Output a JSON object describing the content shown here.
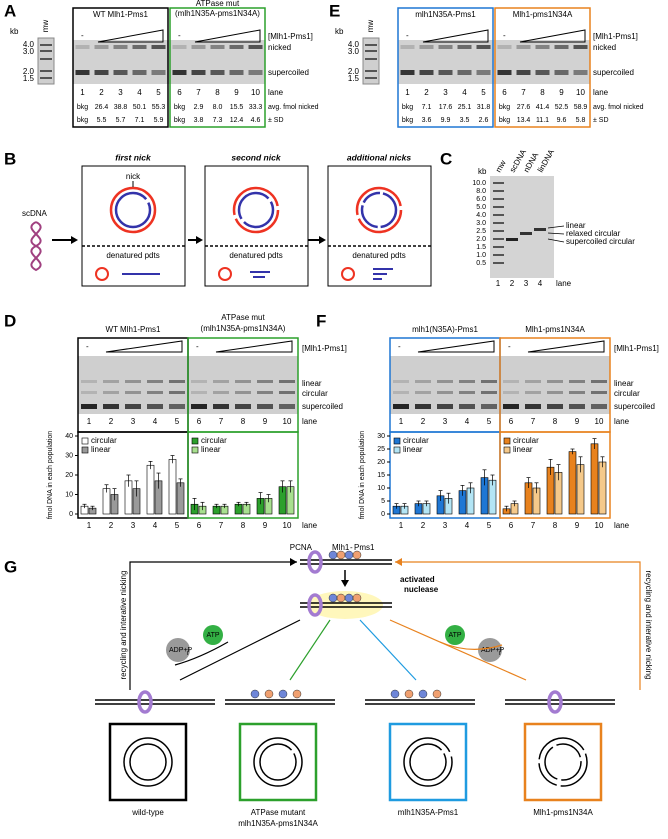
{
  "panel_a": {
    "letter": "A",
    "kb_label": "kb",
    "kb_marks": [
      "4.0",
      "3.0",
      "2.0",
      "1.5"
    ],
    "mw": "mw",
    "groups": [
      {
        "title": "WT Mlh1-Pms1",
        "color": "#000000"
      },
      {
        "title": "ATPase mut",
        "subtitle": "(mlh1N35A-pms1N34A)",
        "color": "#2ca02c"
      }
    ],
    "minus": "-",
    "conc_label": "[Mlh1-Pms1]",
    "band_labels": [
      "nicked",
      "supercoiled"
    ],
    "lane_label": "lane",
    "lanes": [
      "1",
      "2",
      "3",
      "4",
      "5",
      "6",
      "7",
      "8",
      "9",
      "10"
    ],
    "avg_label": "avg. fmol nicked",
    "sd_label": "± SD",
    "avg": [
      "bkg",
      "26.4",
      "38.8",
      "50.1",
      "55.3",
      "bkg",
      "2.9",
      "8.0",
      "15.5",
      "33.3"
    ],
    "sd": [
      "bkg",
      "5.5",
      "5.7",
      "7.1",
      "5.9",
      "bkg",
      "3.8",
      "7.3",
      "12.4",
      "4.6"
    ]
  },
  "panel_e": {
    "letter": "E",
    "kb_label": "kb",
    "kb_marks": [
      "4.0",
      "3.0",
      "2.0",
      "1.5"
    ],
    "mw": "mw",
    "groups": [
      {
        "title": "mlh1N35A-Pms1",
        "color": "#1f77d4"
      },
      {
        "title": "Mlh1-pms1N34A",
        "color": "#e8821e"
      }
    ],
    "minus": "-",
    "conc_label": "[Mlh1-Pms1]",
    "band_labels": [
      "nicked",
      "supercoiled"
    ],
    "lane_label": "lane",
    "lanes": [
      "1",
      "2",
      "3",
      "4",
      "5",
      "6",
      "7",
      "8",
      "9",
      "10"
    ],
    "avg_label": "avg. fmol nicked",
    "sd_label": "± SD",
    "avg": [
      "bkg",
      "7.1",
      "17.6",
      "25.1",
      "31.8",
      "bkg",
      "27.6",
      "41.4",
      "52.5",
      "58.9"
    ],
    "sd": [
      "bkg",
      "3.6",
      "9.9",
      "3.5",
      "2.6",
      "bkg",
      "13.4",
      "11.1",
      "9.6",
      "5.8"
    ]
  },
  "panel_b": {
    "letter": "B",
    "scdna": "scDNA",
    "steps": [
      {
        "title": "first nick"
      },
      {
        "title": "second nick"
      },
      {
        "title": "additional nicks"
      }
    ],
    "nick": "nick",
    "denatured": "denatured pdts"
  },
  "panel_c": {
    "letter": "C",
    "kb_label": "kb",
    "ladder": [
      "10.0",
      "8.0",
      "6.0",
      "5.0",
      "4.0",
      "3.0",
      "2.5",
      "2.0",
      "1.5",
      "1.0",
      "0.5"
    ],
    "lane_headers": [
      "mw",
      "scDNA",
      "nDNA",
      "linDNA"
    ],
    "band_labels": [
      "linear",
      "relaxed circular",
      "supercoiled circular"
    ],
    "lanes": [
      "1",
      "2",
      "3",
      "4"
    ],
    "lane_label": "lane"
  },
  "chart_data": [
    {
      "type": "bar",
      "label": "D",
      "groups": [
        {
          "title": "WT Mlh1-Pms1",
          "color": "#000000"
        },
        {
          "title": "ATPase mut",
          "subtitle": "(mlh1N35A-pms1N34A)",
          "color": "#2ca02c"
        }
      ],
      "minus": "-",
      "conc_label": "[Mlh1-Pms1]",
      "band_labels": [
        "linear",
        "circular",
        "supercoiled"
      ],
      "categories": [
        "1",
        "2",
        "3",
        "4",
        "5",
        "6",
        "7",
        "8",
        "9",
        "10"
      ],
      "x_label": "lane",
      "y_label": "fmol DNA in each population",
      "ylim": [
        0,
        40
      ],
      "yticks": [
        0,
        10,
        20,
        30,
        40
      ],
      "series": [
        {
          "name": "circular",
          "colors": [
            "#ffffff",
            "#ffffff",
            "#ffffff",
            "#ffffff",
            "#ffffff",
            "#2ca02c",
            "#2ca02c",
            "#2ca02c",
            "#2ca02c",
            "#2ca02c"
          ],
          "values": [
            4,
            13,
            17,
            25,
            28,
            5,
            4,
            5,
            8,
            14
          ],
          "errors": [
            1,
            2,
            3,
            2,
            2,
            3,
            1,
            1,
            3,
            3
          ]
        },
        {
          "name": "linear",
          "colors": [
            "#9a9a9a",
            "#9a9a9a",
            "#9a9a9a",
            "#9a9a9a",
            "#9a9a9a",
            "#a8e08f",
            "#a8e08f",
            "#a8e08f",
            "#a8e08f",
            "#a8e08f"
          ],
          "values": [
            3,
            10,
            13,
            17,
            16,
            4,
            4,
            5,
            8,
            14
          ],
          "errors": [
            1,
            3,
            4,
            4,
            2,
            2,
            1,
            1,
            2,
            3
          ]
        }
      ]
    },
    {
      "type": "bar",
      "label": "F",
      "groups": [
        {
          "title": "mlh1(N35A)-Pms1",
          "color": "#1f77d4"
        },
        {
          "title": "Mlh1-pms1N34A",
          "color": "#e8821e"
        }
      ],
      "minus": "-",
      "conc_label": "[Mlh1-Pms1]",
      "band_labels": [
        "linear",
        "circular",
        "supercoiled"
      ],
      "categories": [
        "1",
        "2",
        "3",
        "4",
        "5",
        "6",
        "7",
        "8",
        "9",
        "10"
      ],
      "x_label": "lane",
      "y_label": "fmol DNA in each population",
      "ylim": [
        0,
        30
      ],
      "yticks": [
        0,
        5,
        10,
        15,
        20,
        25,
        30
      ],
      "series": [
        {
          "name": "circular",
          "colors": [
            "#1f77d4",
            "#1f77d4",
            "#1f77d4",
            "#1f77d4",
            "#1f77d4",
            "#e8821e",
            "#e8821e",
            "#e8821e",
            "#e8821e",
            "#e8821e"
          ],
          "values": [
            3,
            4,
            7,
            9,
            14,
            2,
            12,
            18,
            24,
            27
          ],
          "errors": [
            1,
            1,
            2,
            2,
            3,
            1,
            2,
            3,
            1,
            2
          ]
        },
        {
          "name": "linear",
          "colors": [
            "#b3e5f5",
            "#b3e5f5",
            "#b3e5f5",
            "#b3e5f5",
            "#b3e5f5",
            "#f5c98a",
            "#f5c98a",
            "#f5c98a",
            "#f5c98a",
            "#f5c98a"
          ],
          "values": [
            3,
            4,
            6,
            10,
            13,
            4,
            10,
            16,
            19,
            20
          ],
          "errors": [
            1,
            1,
            2,
            2,
            2,
            1,
            2,
            3,
            3,
            2
          ]
        }
      ]
    }
  ],
  "panel_g": {
    "letter": "G",
    "pcna": "PCNA",
    "mlh1": "Mlh1",
    "dash": "-",
    "pms1": "Pms1",
    "nuclease": [
      "activated",
      "nuclease"
    ],
    "atp": "ATP",
    "adp": "ADP+P",
    "pi": "i",
    "recycling": "recycling and interative nicking",
    "outcomes": [
      {
        "label": "wild-type",
        "color": "#000000"
      },
      {
        "label": "ATPase mutant",
        "sublabel": "mlh1N35A-pms1N34A",
        "color": "#2ca02c"
      },
      {
        "label": "mlh1N35A-Pms1",
        "color": "#1f9be0"
      },
      {
        "label": "Mlh1-pms1N34A",
        "color": "#e8821e"
      }
    ]
  }
}
